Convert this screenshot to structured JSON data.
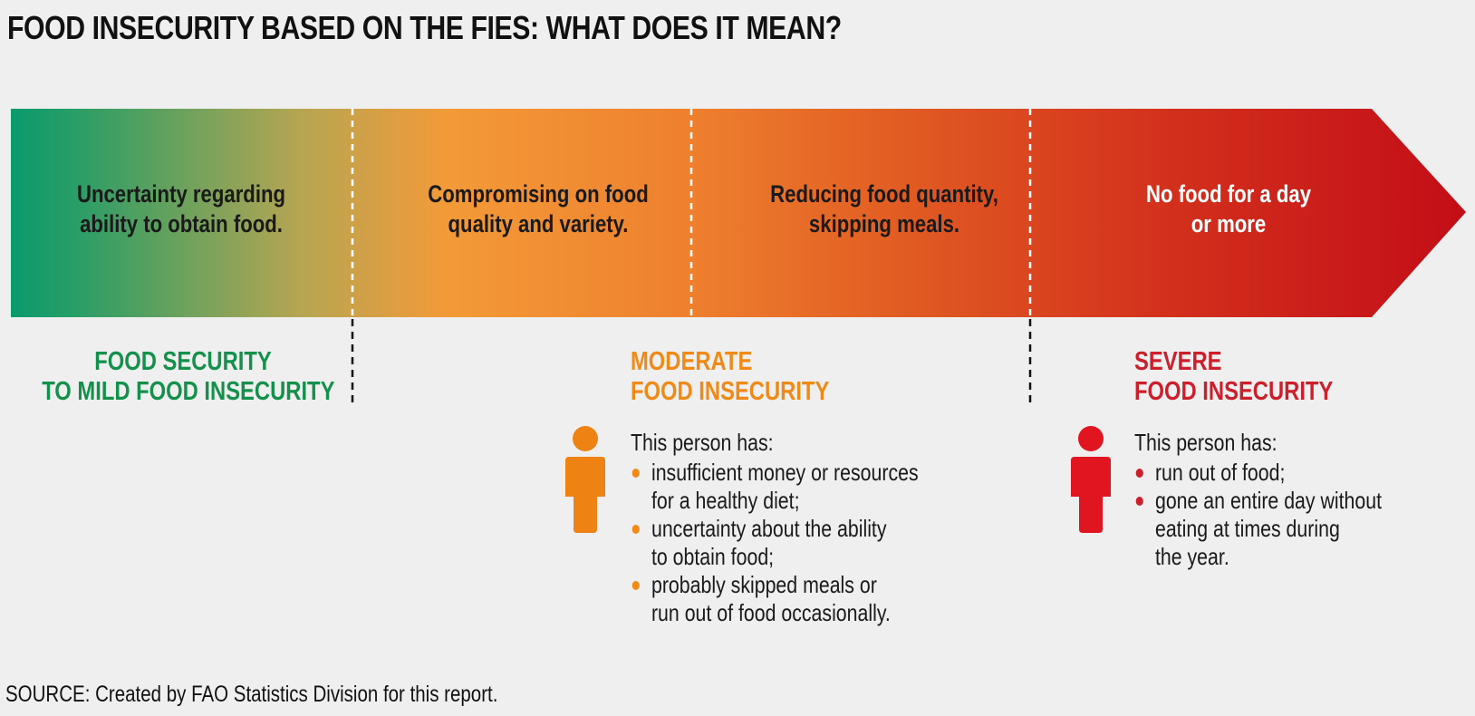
{
  "title": "FOOD INSECURITY BASED ON THE FIES: WHAT DOES IT MEAN?",
  "colors": {
    "green": "#0a9a6e",
    "orange": "#f39a38",
    "red": "#c30d17",
    "orange_text": "#ef8a17",
    "red_text": "#cc1f2c",
    "green_text": "#13914a",
    "orange_person": "#ee8212",
    "red_person": "#e01520"
  },
  "segments": [
    {
      "lines": [
        "Uncertainty regarding",
        "ability to obtain food."
      ]
    },
    {
      "lines": [
        "Compromising on food",
        "quality and variety."
      ]
    },
    {
      "lines": [
        "Reducing food quantity,",
        "skipping meals."
      ]
    },
    {
      "lines": [
        "No food for a day",
        "or more"
      ]
    }
  ],
  "categories": {
    "food_security": [
      "FOOD SECURITY",
      "TO MILD FOOD INSECURITY"
    ],
    "moderate": [
      "MODERATE",
      "FOOD INSECURITY"
    ],
    "severe": [
      "SEVERE",
      "FOOD INSECURITY"
    ]
  },
  "moderate_desc": {
    "lead": "This person has:",
    "bullets": [
      [
        "insufficient money or resources",
        "for a healthy diet;"
      ],
      [
        "uncertainty about the ability",
        "to obtain food;"
      ],
      [
        "probably skipped meals or",
        "run out of food occasionally."
      ]
    ]
  },
  "severe_desc": {
    "lead": "This person has:",
    "bullets": [
      [
        "run out of food;"
      ],
      [
        "gone an entire day without",
        "eating at times during",
        "the year."
      ]
    ]
  },
  "person_icon": "person-icon",
  "source": "SOURCE: Created by FAO Statistics Division for this report."
}
